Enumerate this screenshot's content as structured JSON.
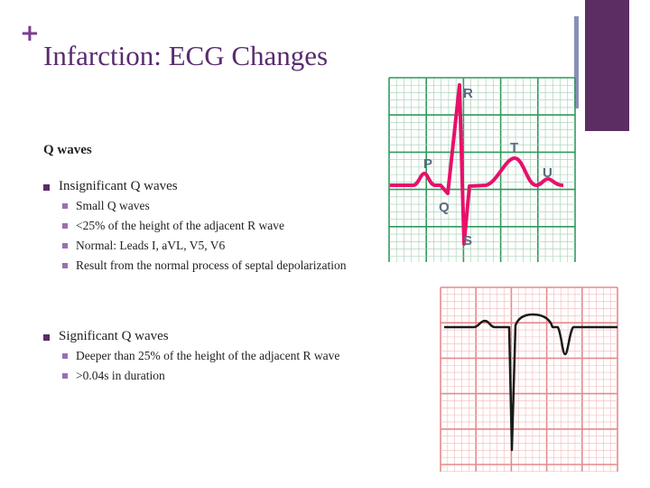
{
  "header": {
    "marker": "+",
    "title": "Infarction: ECG Changes"
  },
  "body": {
    "heading": "Q waves",
    "sections": [
      {
        "title": "Insignificant Q waves",
        "items": [
          "Small Q waves",
          "<25% of the height of the adjacent R wave",
          "Normal: Leads I, aVL, V5, V6",
          "Result from the normal process of septal depolarization"
        ]
      },
      {
        "title": "Significant Q waves",
        "items": [
          "Deeper than 25% of the height of the adjacent R wave",
          ">0.04s in duration"
        ]
      }
    ]
  },
  "diagram": {
    "labels": [
      "R",
      "T",
      "P",
      "U",
      "Q",
      "S"
    ]
  }
}
